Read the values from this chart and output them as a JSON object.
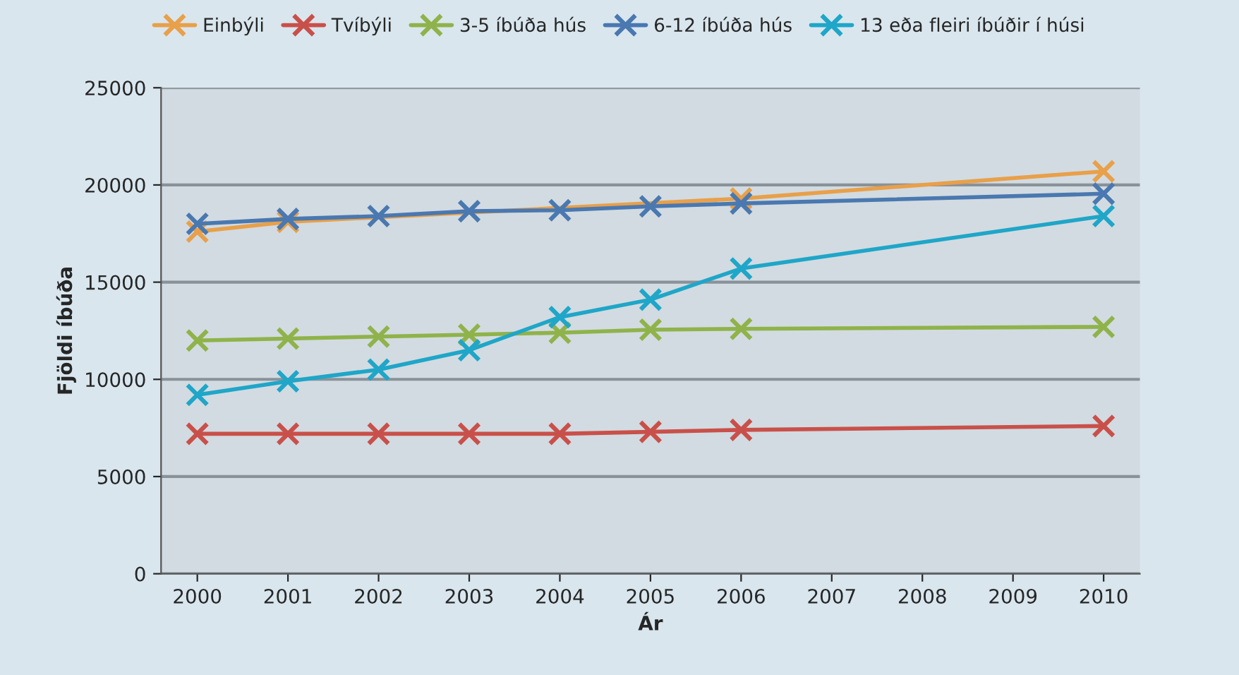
{
  "chart_data": {
    "type": "line",
    "xlabel": "Ár",
    "ylabel": "Fjöldi íbúða",
    "x": [
      2000,
      2001,
      2002,
      2003,
      2004,
      2005,
      2006,
      2010
    ],
    "series": [
      {
        "name": "Einbýli",
        "color": "#e8a04a",
        "values": [
          17600,
          18100,
          null,
          null,
          null,
          null,
          19300,
          20700
        ]
      },
      {
        "name": "Tvíbýli",
        "color": "#c9504a",
        "values": [
          7200,
          7200,
          7200,
          7200,
          7200,
          7300,
          7400,
          7600
        ]
      },
      {
        "name": "3-5 íbúða hús",
        "color": "#8fb34a",
        "values": [
          12000,
          12100,
          12200,
          12300,
          12400,
          12550,
          12600,
          12700
        ]
      },
      {
        "name": "6-12 íbúða hús",
        "color": "#4a78b0",
        "values": [
          18000,
          18250,
          18400,
          18650,
          18700,
          18900,
          19050,
          19550
        ]
      },
      {
        "name": "13 eða fleiri íbúðir í húsi",
        "color": "#1fa6c8",
        "values": [
          9200,
          9900,
          10500,
          11500,
          13200,
          14100,
          15700,
          18400
        ]
      }
    ],
    "xlim": [
      1999.6,
      2010.4
    ],
    "xticks": [
      2000,
      2001,
      2002,
      2003,
      2004,
      2005,
      2006,
      2007,
      2008,
      2009,
      2010
    ],
    "ylim": [
      0,
      25000
    ],
    "yticks": [
      0,
      5000,
      10000,
      15000,
      20000,
      25000
    ],
    "grid": "y",
    "legend": "top",
    "marker": "cross",
    "line_style": "solid"
  }
}
